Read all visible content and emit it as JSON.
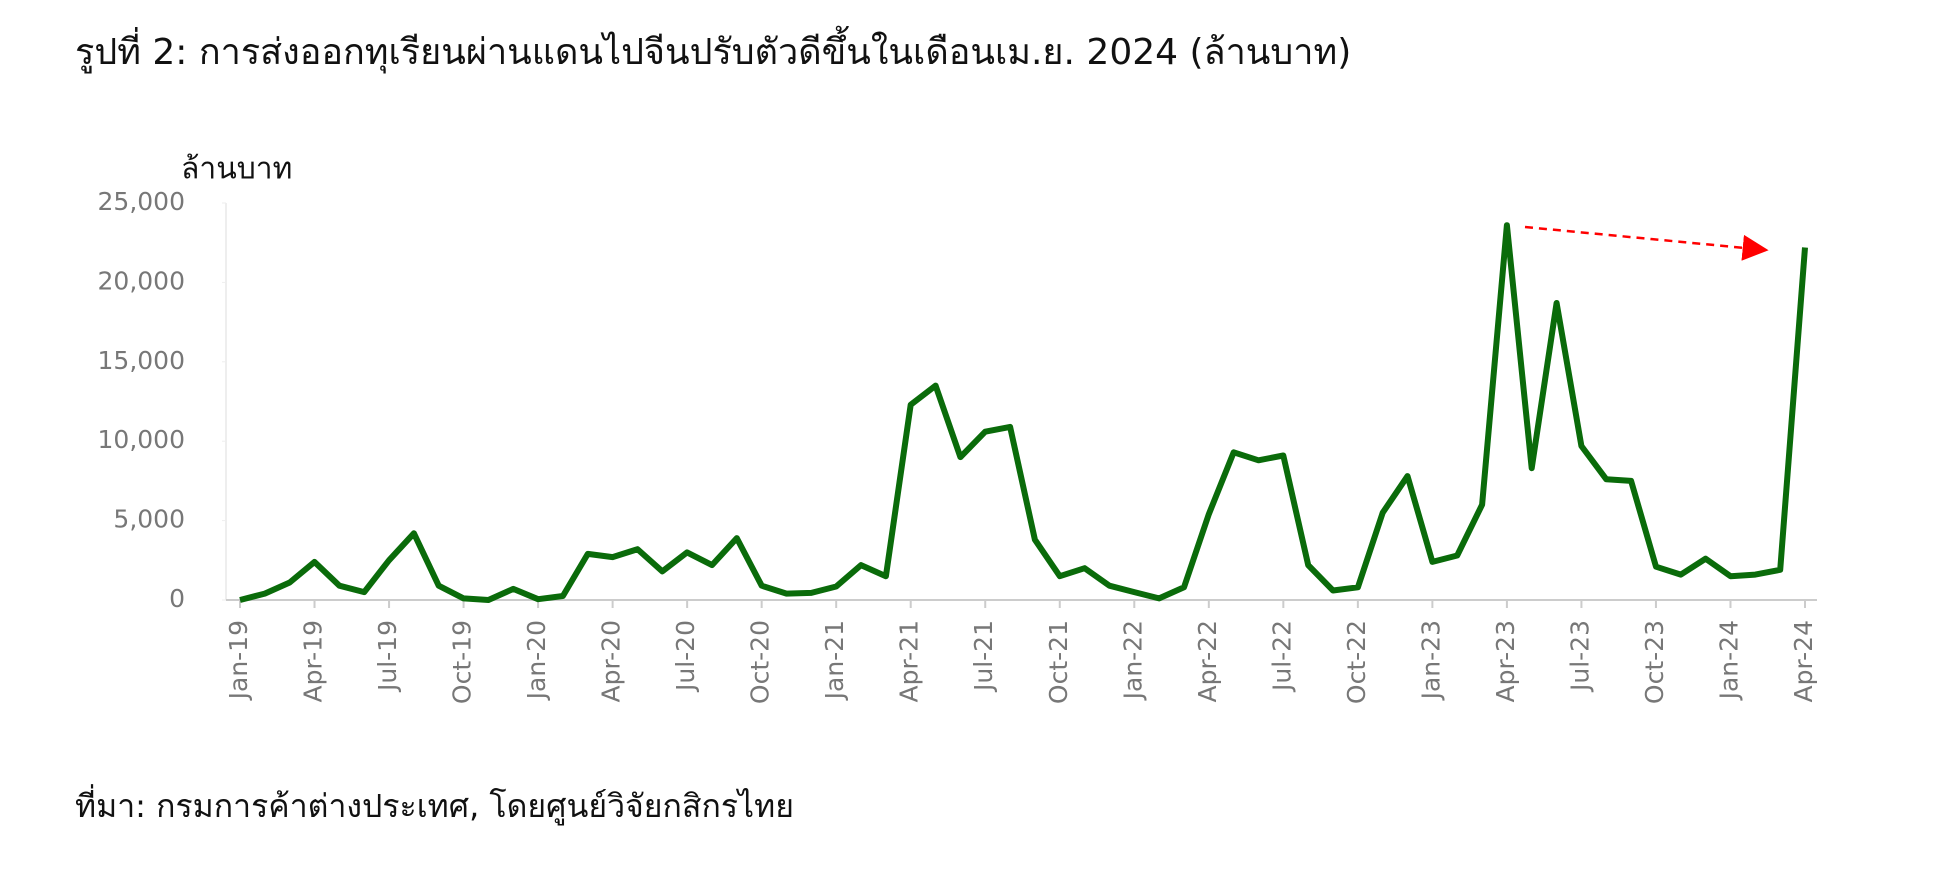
{
  "chart_data": {
    "type": "line",
    "title": "รูปที่ 2: การส่งออกทุเรียนผ่านแดนไปจีนปรับตัวดีขึ้นในเดือนเม.ย. 2024 (ล้านบาท)",
    "y_label": "ล้านบาท",
    "source": "ที่มา: กรมการค้าต่างประเทศ, โดยศูนย์วิจัยกสิกรไทย",
    "categories": [
      "Jan-19",
      null,
      null,
      "Apr-19",
      null,
      null,
      "Jul-19",
      null,
      null,
      "Oct-19",
      null,
      null,
      "Jan-20",
      null,
      null,
      "Apr-20",
      null,
      null,
      "Jul-20",
      null,
      null,
      "Oct-20",
      null,
      null,
      "Jan-21",
      null,
      null,
      "Apr-21",
      null,
      null,
      "Jul-21",
      null,
      null,
      "Oct-21",
      null,
      null,
      "Jan-22",
      null,
      null,
      "Apr-22",
      null,
      null,
      "Jul-22",
      null,
      null,
      "Oct-22",
      null,
      null,
      "Jan-23",
      null,
      null,
      "Apr-23",
      null,
      null,
      "Jul-23",
      null,
      null,
      "Oct-23",
      null,
      null,
      "Jan-24",
      null,
      null,
      "Apr-24"
    ],
    "values": [
      0,
      400,
      1100,
      2400,
      900,
      500,
      2500,
      4200,
      900,
      100,
      0,
      700,
      50,
      250,
      2900,
      2700,
      3200,
      1800,
      3000,
      2200,
      3900,
      900,
      400,
      450,
      850,
      2200,
      1500,
      12300,
      13500,
      9000,
      10600,
      10900,
      3800,
      1500,
      2000,
      900,
      500,
      100,
      800,
      5400,
      9300,
      8800,
      9100,
      2200,
      600,
      800,
      5500,
      7800,
      2400,
      2800,
      6000,
      23600,
      8300,
      18700,
      9700,
      7600,
      7500,
      2100,
      1600,
      2600,
      1500,
      1600,
      1900,
      22200
    ],
    "color": "#0a6b0a",
    "ylim": [
      0,
      25000
    ],
    "yticks": [
      0,
      {
        "value": 5000,
        "label": "5,000"
      },
      {
        "value": 10000,
        "label": "10,000"
      },
      {
        "value": 15000,
        "label": "15,000"
      },
      {
        "value": 20000,
        "label": "20,000"
      },
      {
        "value": 25000,
        "label": "25,000"
      }
    ]
  }
}
